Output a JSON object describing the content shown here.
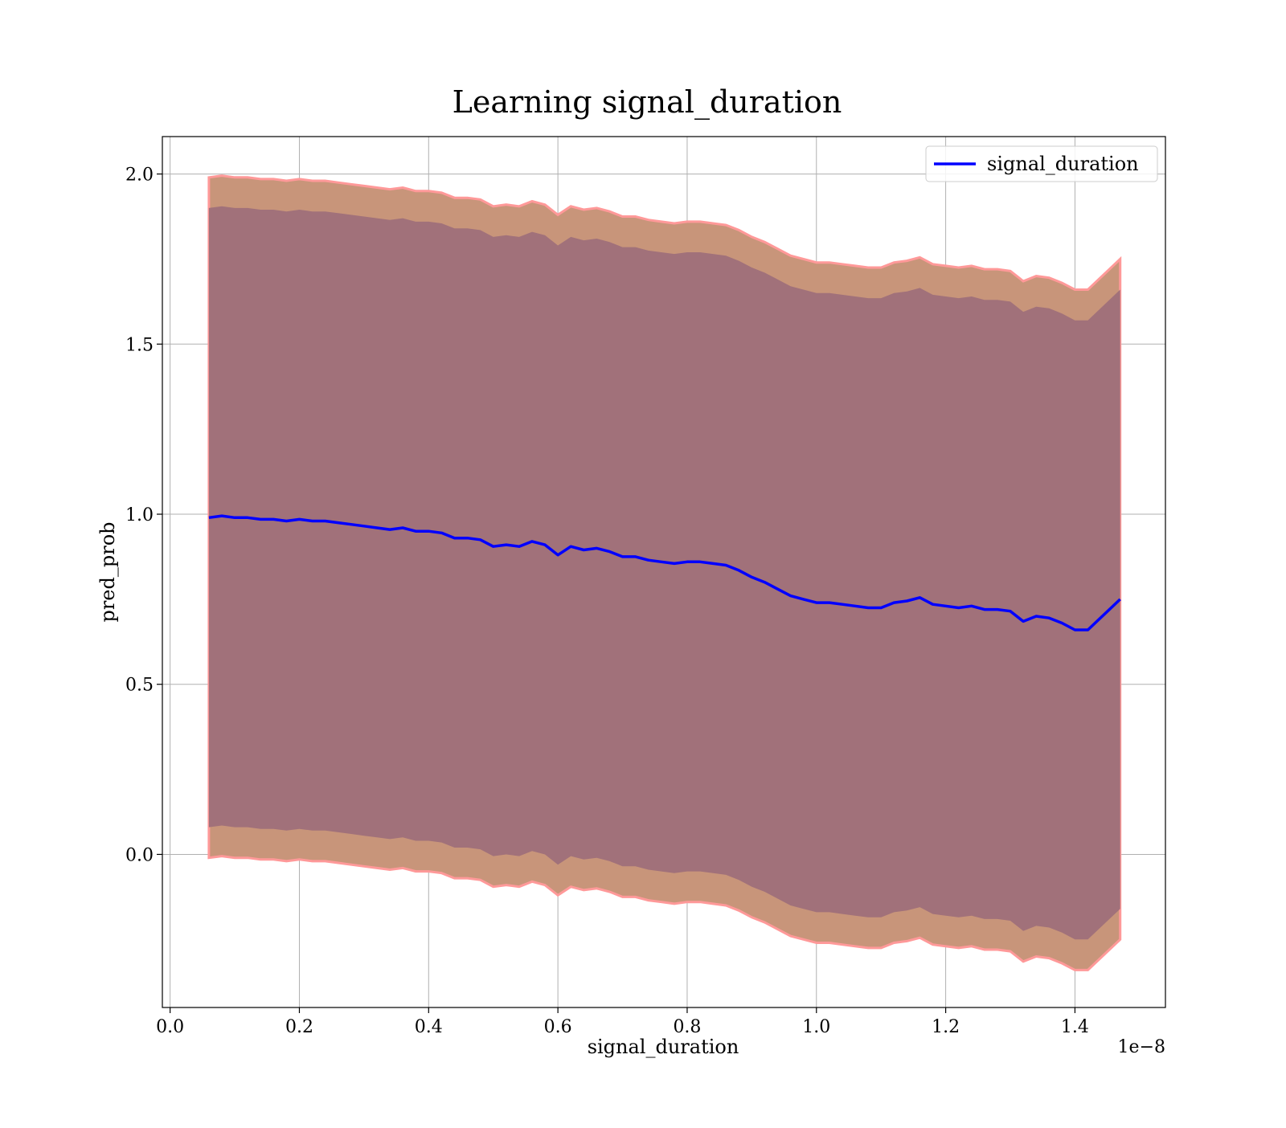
{
  "chart_data": {
    "type": "line",
    "title": "Learning signal_duration",
    "xlabel": "signal_duration",
    "ylabel": "pred_prob",
    "x_offset_label": "1e−8",
    "x_ticks": [
      0.0,
      0.2,
      0.4,
      0.6,
      0.8,
      1.0,
      1.2,
      1.4
    ],
    "x_tick_labels": [
      "0.0",
      "0.2",
      "0.4",
      "0.6",
      "0.8",
      "1.0",
      "1.2",
      "1.4"
    ],
    "y_ticks": [
      0.0,
      0.5,
      1.0,
      1.5,
      2.0
    ],
    "y_tick_labels": [
      "0.0",
      "0.5",
      "1.0",
      "1.5",
      "2.0"
    ],
    "xlim": [
      -0.012,
      1.54
    ],
    "ylim": [
      -0.45,
      2.11
    ],
    "grid": true,
    "legend_position": "top-right",
    "colors": {
      "line": "#0000ff",
      "band_outer_fill": "#c8957a",
      "band_outer_edge": "#ff9999",
      "band_inner_fill": "#a1717a",
      "grid": "#b0b0b0"
    },
    "series": [
      {
        "name": "signal_duration",
        "x": [
          0.06,
          0.08,
          0.1,
          0.12,
          0.14,
          0.16,
          0.18,
          0.2,
          0.22,
          0.24,
          0.26,
          0.28,
          0.3,
          0.32,
          0.34,
          0.36,
          0.38,
          0.4,
          0.42,
          0.44,
          0.46,
          0.48,
          0.5,
          0.52,
          0.54,
          0.56,
          0.58,
          0.6,
          0.62,
          0.64,
          0.66,
          0.68,
          0.7,
          0.72,
          0.74,
          0.76,
          0.78,
          0.8,
          0.82,
          0.84,
          0.86,
          0.88,
          0.9,
          0.92,
          0.94,
          0.96,
          0.98,
          1.0,
          1.02,
          1.04,
          1.06,
          1.08,
          1.1,
          1.12,
          1.14,
          1.16,
          1.18,
          1.2,
          1.22,
          1.24,
          1.26,
          1.28,
          1.3,
          1.32,
          1.34,
          1.36,
          1.38,
          1.4,
          1.42,
          1.47
        ],
        "y": [
          0.99,
          0.995,
          0.99,
          0.99,
          0.985,
          0.985,
          0.98,
          0.985,
          0.98,
          0.98,
          0.975,
          0.97,
          0.965,
          0.96,
          0.955,
          0.96,
          0.95,
          0.95,
          0.945,
          0.93,
          0.93,
          0.925,
          0.905,
          0.91,
          0.905,
          0.92,
          0.91,
          0.88,
          0.905,
          0.895,
          0.9,
          0.89,
          0.875,
          0.875,
          0.865,
          0.86,
          0.855,
          0.86,
          0.86,
          0.855,
          0.85,
          0.835,
          0.815,
          0.8,
          0.78,
          0.76,
          0.75,
          0.74,
          0.74,
          0.735,
          0.73,
          0.725,
          0.725,
          0.74,
          0.745,
          0.755,
          0.735,
          0.73,
          0.725,
          0.73,
          0.72,
          0.72,
          0.715,
          0.685,
          0.7,
          0.695,
          0.68,
          0.66,
          0.66,
          0.75
        ],
        "band_inner": 0.91,
        "band_outer": 1.0
      }
    ]
  }
}
